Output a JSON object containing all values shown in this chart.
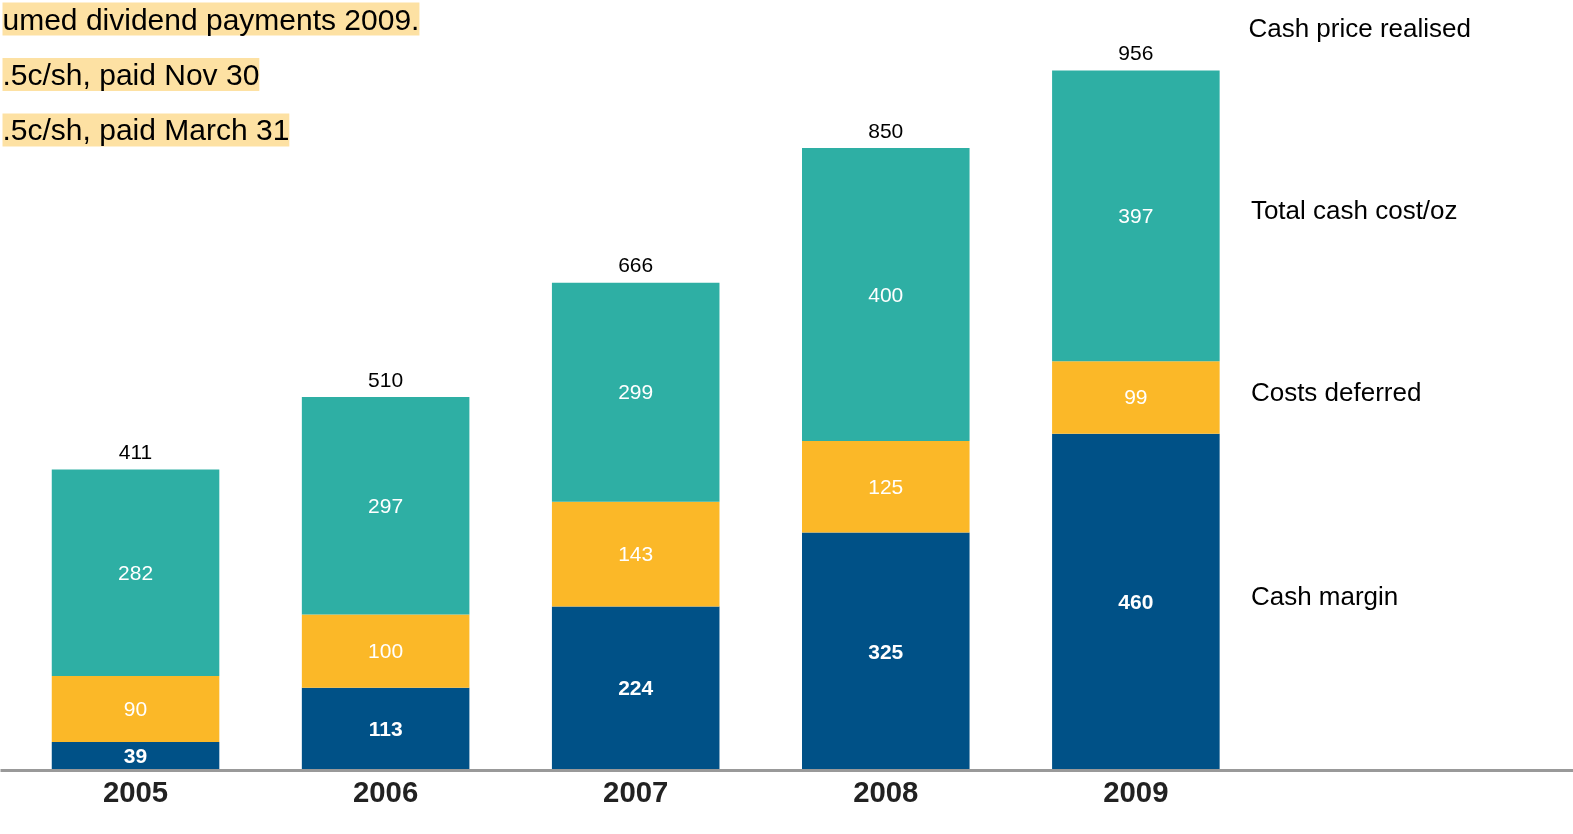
{
  "chart_data": {
    "type": "bar",
    "stacked": true,
    "data_labels": true,
    "categories": [
      "2005",
      "2006",
      "2007",
      "2008",
      "2009"
    ],
    "series": [
      {
        "name": "Cash margin",
        "color": "#005187",
        "values": [
          39,
          113,
          224,
          325,
          460
        ]
      },
      {
        "name": "Costs deferred",
        "color": "#fbb828",
        "values": [
          90,
          100,
          143,
          125,
          99
        ]
      },
      {
        "name": "Total cash cost/oz",
        "color": "#2eafa4",
        "values": [
          282,
          297,
          299,
          400,
          397
        ]
      }
    ],
    "totals": [
      "411",
      "510",
      "666",
      "850",
      "956"
    ],
    "annotations": [
      "umed dividend payments 2009.",
      ".5c/sh, paid Nov 30",
      ".5c/sh, paid March 31",
      "Cash price realised"
    ]
  }
}
